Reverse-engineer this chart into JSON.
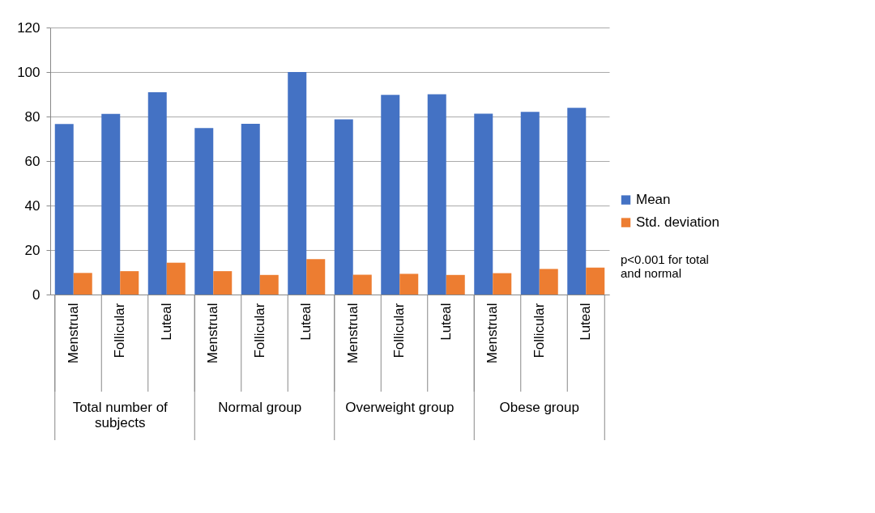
{
  "chart_data": {
    "type": "bar",
    "categories": [
      "Menstrual",
      "Follicular",
      "Luteal",
      "Menstrual",
      "Follicular",
      "Luteal",
      "Menstrual",
      "Follicular",
      "Luteal",
      "Menstrual",
      "Follicular",
      "Luteal"
    ],
    "series": [
      {
        "name": "Mean",
        "color": "#4472c4",
        "values": [
          76.6,
          81.2,
          90.9,
          74.8,
          76.7,
          100,
          78.7,
          89.7,
          90.0,
          81.3,
          82.1,
          83.9
        ]
      },
      {
        "name": "Std. deviation",
        "color": "#ed7d31",
        "values": [
          9.7,
          10.5,
          14.3,
          10.5,
          8.8,
          15.9,
          8.9,
          9.3,
          8.8,
          9.6,
          11.5,
          12.1
        ]
      }
    ],
    "ylim": [
      0,
      120
    ],
    "yticks": [
      0,
      20,
      40,
      60,
      80,
      100,
      120
    ],
    "grid": "y",
    "legend": "right",
    "annotations": [
      "Total  number of\nsubjects",
      "Normal group",
      "Overweight group",
      "Obese group",
      "p<0.001 for total\n and normal"
    ]
  }
}
